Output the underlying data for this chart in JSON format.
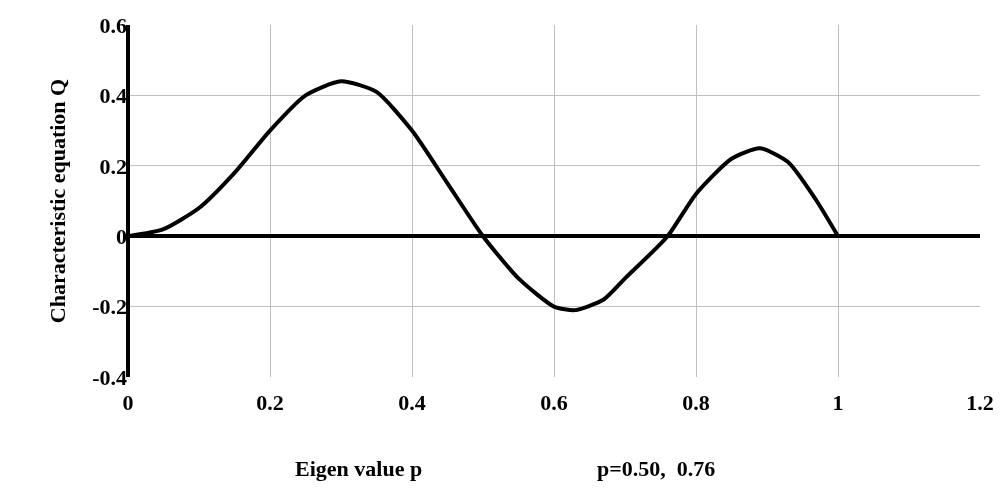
{
  "chart_data": {
    "type": "line",
    "xlabel": "Eigen value p",
    "ylabel": "Characteristic equation Q",
    "annotations": [
      "p=0.50,  0.76"
    ],
    "x": [
      0,
      0.05,
      0.1,
      0.15,
      0.2,
      0.25,
      0.3,
      0.35,
      0.4,
      0.45,
      0.5,
      0.55,
      0.6,
      0.63,
      0.67,
      0.7,
      0.76,
      0.8,
      0.85,
      0.89,
      0.93,
      0.97,
      1.0
    ],
    "series": [
      {
        "color": "#000000",
        "values": [
          0,
          0.02,
          0.08,
          0.18,
          0.3,
          0.4,
          0.44,
          0.41,
          0.3,
          0.15,
          0,
          -0.12,
          -0.2,
          -0.21,
          -0.18,
          -0.12,
          0,
          0.12,
          0.22,
          0.25,
          0.21,
          0.1,
          0
        ]
      }
    ],
    "xlim": [
      0,
      1.2
    ],
    "xticks": [
      0,
      0.2,
      0.4,
      0.6,
      0.8,
      1,
      1.2
    ],
    "ylim": [
      -0.4,
      0.6
    ],
    "yticks": [
      -0.4,
      -0.2,
      0,
      0.2,
      0.4,
      0.6
    ],
    "grid": true,
    "legend": false,
    "marker": "none",
    "line_style": "solid"
  }
}
